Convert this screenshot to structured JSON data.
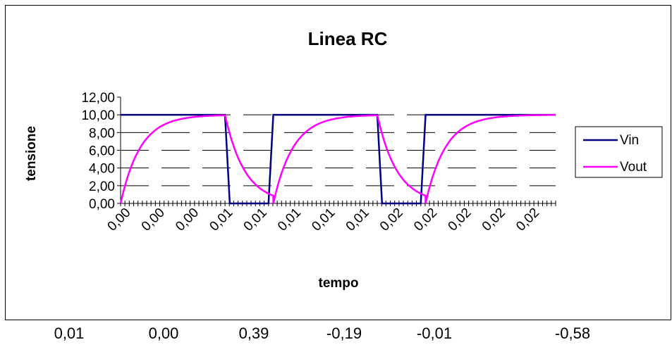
{
  "chart_data": {
    "type": "line",
    "title": "Linea RC",
    "xlabel": "tempo",
    "ylabel": "tensione",
    "ylim": [
      0,
      12
    ],
    "y_ticks": [
      "0,00",
      "2,00",
      "4,00",
      "6,00",
      "8,00",
      "10,00",
      "12,00"
    ],
    "y_tick_values": [
      0,
      2,
      4,
      6,
      8,
      10,
      12
    ],
    "x_tick_labels": [
      "0,00",
      "0,00",
      "0,00",
      "0,01",
      "0,01",
      "0,01",
      "0,01",
      "0,01",
      "0,02",
      "0,02",
      "0,02",
      "0,02",
      "0,02"
    ],
    "gridlines": "horizontal dashed",
    "legend_placement": "right",
    "series": [
      {
        "name": "Vin",
        "color": "#000080",
        "points": [
          [
            0,
            10
          ],
          [
            0.24,
            10
          ],
          [
            0.251,
            0
          ],
          [
            0.34,
            0
          ],
          [
            0.351,
            10
          ],
          [
            0.59,
            10
          ],
          [
            0.601,
            0
          ],
          [
            0.69,
            0
          ],
          [
            0.701,
            10
          ],
          [
            1.0,
            10
          ]
        ]
      },
      {
        "name": "Vout",
        "color": "#ff00ff",
        "shape": "rc-charge-discharge",
        "charge_start": [
          0,
          0.351,
          0.701
        ],
        "discharge_start": [
          0.24,
          0.59
        ],
        "v_max": 10,
        "v_min": 0
      }
    ]
  },
  "bottom_values": [
    "0,01",
    "0,00",
    "0,39",
    "-0,19",
    "-0,01",
    "-0,58"
  ]
}
